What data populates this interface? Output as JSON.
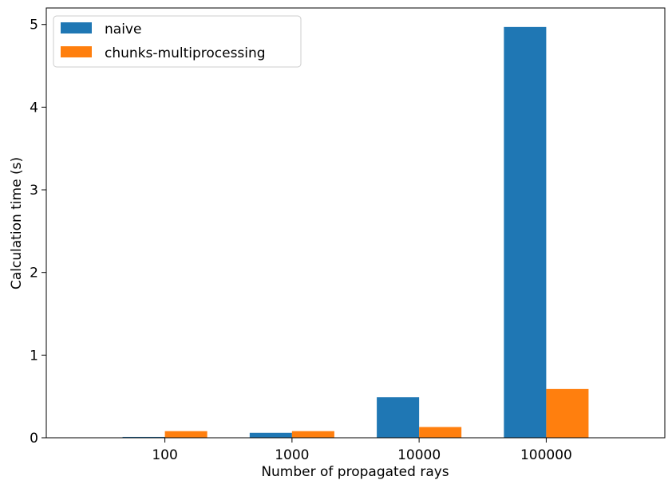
{
  "chart_data": {
    "type": "bar",
    "categories": [
      "100",
      "1000",
      "10000",
      "100000"
    ],
    "series": [
      {
        "name": "naive",
        "color": "#1f77b4",
        "values": [
          0.01,
          0.06,
          0.49,
          4.97
        ]
      },
      {
        "name": "chunks-multiprocessing",
        "color": "#ff7f0e",
        "values": [
          0.08,
          0.08,
          0.13,
          0.59
        ]
      }
    ],
    "xlabel": "Number of propagated rays",
    "ylabel": "Calculation time (s)",
    "ylim": [
      0,
      5.2
    ],
    "yticks": [
      "0",
      "1",
      "2",
      "3",
      "4",
      "5"
    ],
    "legend_position": "upper-left",
    "grid": false
  }
}
